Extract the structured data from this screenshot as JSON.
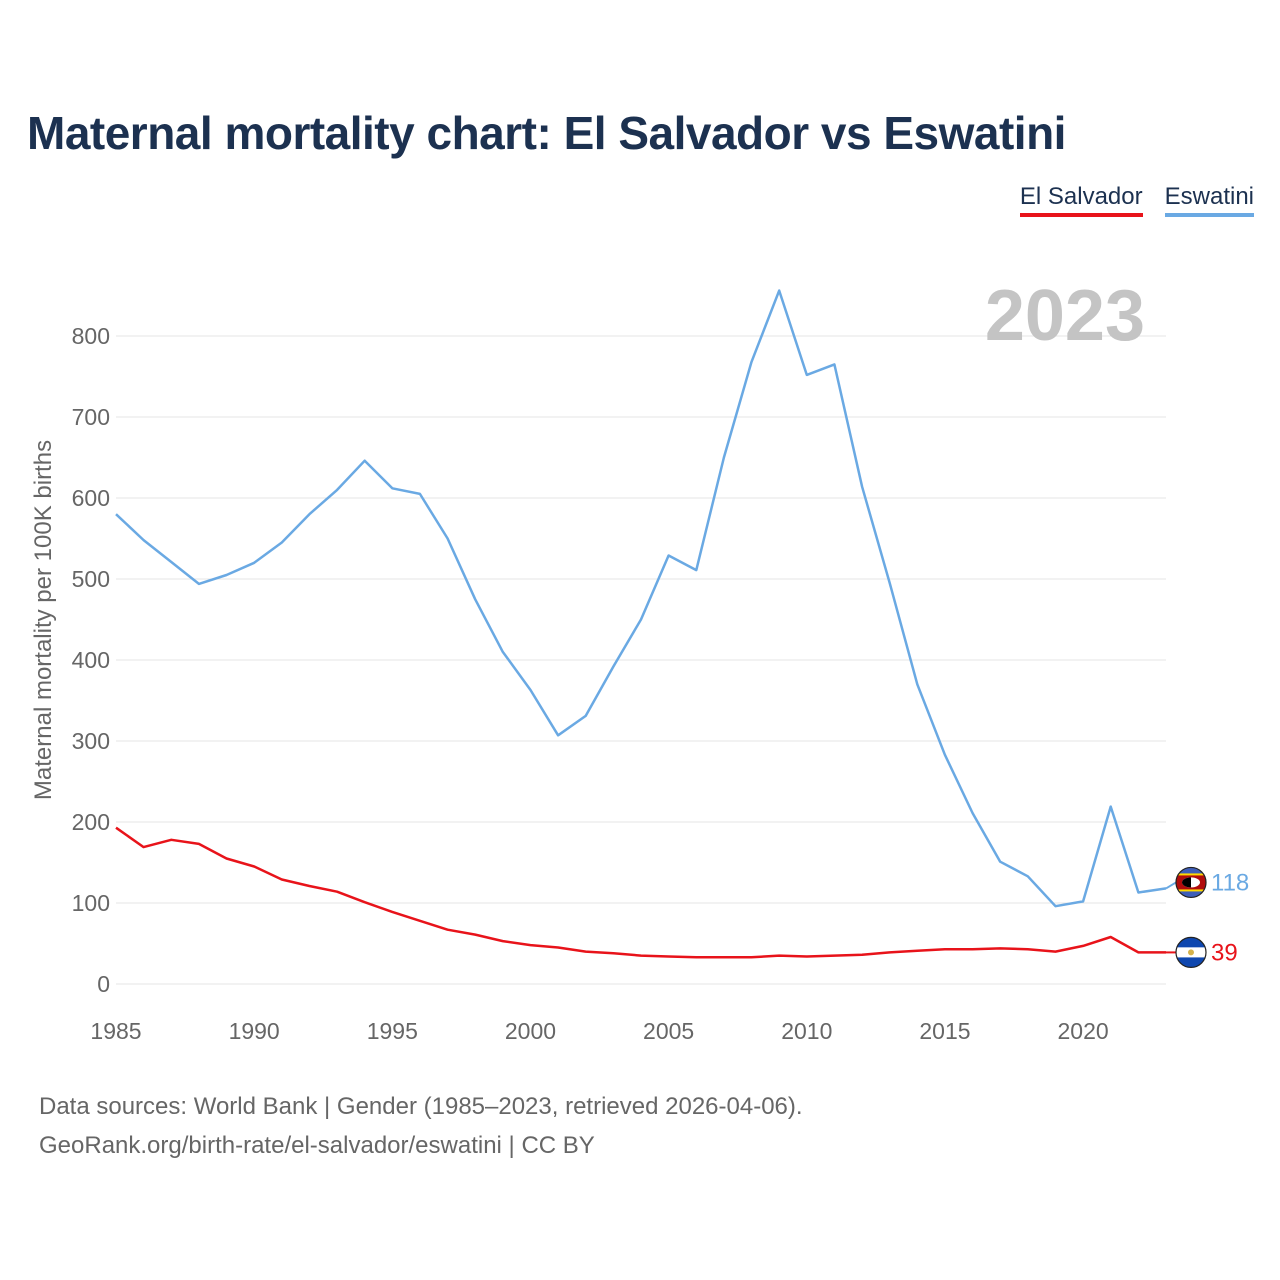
{
  "title": "Maternal mortality chart: El Salvador vs Eswatini",
  "legend": [
    {
      "label": "El Salvador",
      "color": "#e8131a"
    },
    {
      "label": "Eswatini",
      "color": "#6aa9e3"
    }
  ],
  "year_watermark": "2023",
  "footer": {
    "line1": "Data sources: World Bank | Gender (1985–2023, retrieved 2026-04-06).",
    "line2": "GeoRank.org/birth-rate/el-salvador/eswatini | CC BY"
  },
  "chart_data": {
    "type": "line",
    "title": "Maternal mortality chart: El Salvador vs Eswatini",
    "xlabel": "",
    "ylabel": "Maternal mortality per 100K births",
    "xlim": [
      1985,
      2023
    ],
    "ylim": [
      0,
      800
    ],
    "x_ticks": [
      "1985",
      "1990",
      "1995",
      "2000",
      "2005",
      "2010",
      "2015",
      "2020"
    ],
    "y_ticks": [
      "0",
      "100",
      "200",
      "300",
      "400",
      "500",
      "600",
      "700",
      "800"
    ],
    "grid": true,
    "legend_position": "top-right",
    "x": [
      1985,
      1986,
      1987,
      1988,
      1989,
      1990,
      1991,
      1992,
      1993,
      1994,
      1995,
      1996,
      1997,
      1998,
      1999,
      2000,
      2001,
      2002,
      2003,
      2004,
      2005,
      2006,
      2007,
      2008,
      2009,
      2010,
      2011,
      2012,
      2013,
      2014,
      2015,
      2016,
      2017,
      2018,
      2019,
      2020,
      2021,
      2022,
      2023
    ],
    "series": [
      {
        "name": "El Salvador",
        "color": "#e8131a",
        "end_label": "39",
        "flag": "el-salvador-flag-icon",
        "values": [
          193,
          169,
          178,
          173,
          155,
          145,
          129,
          121,
          114,
          101,
          89,
          78,
          67,
          61,
          53,
          48,
          45,
          40,
          38,
          35,
          34,
          33,
          33,
          33,
          35,
          34,
          35,
          36,
          39,
          41,
          43,
          43,
          44,
          43,
          40,
          47,
          58,
          39,
          39
        ]
      },
      {
        "name": "Eswatini",
        "color": "#6aa9e3",
        "end_label": "118",
        "flag": "eswatini-flag-icon",
        "values": [
          580,
          548,
          521,
          494,
          505,
          520,
          545,
          580,
          610,
          646,
          612,
          605,
          550,
          475,
          410,
          363,
          307,
          331,
          392,
          450,
          529,
          511,
          650,
          768,
          856,
          752,
          765,
          614,
          495,
          370,
          283,
          211,
          151,
          133,
          96,
          102,
          219,
          113,
          118
        ]
      }
    ]
  }
}
